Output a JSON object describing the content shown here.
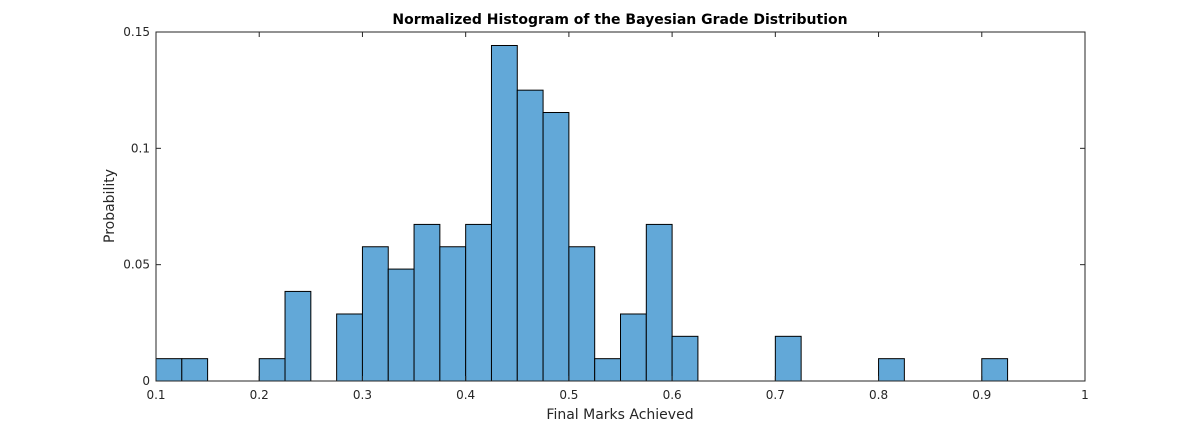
{
  "chart_data": {
    "type": "bar",
    "title": "Normalized Histogram of the Bayesian Grade Distribution",
    "xlabel": "Final Marks Achieved",
    "ylabel": "Probability",
    "xlim": [
      0.1,
      1
    ],
    "ylim": [
      0,
      0.15
    ],
    "xticks": [
      0.1,
      0.2,
      0.3,
      0.4,
      0.5,
      0.6,
      0.7,
      0.8,
      0.9,
      1
    ],
    "xtick_labels": [
      "0.1",
      "0.2",
      "0.3",
      "0.4",
      "0.5",
      "0.6",
      "0.7",
      "0.8",
      "0.9",
      "1"
    ],
    "yticks": [
      0,
      0.05,
      0.1,
      0.15
    ],
    "ytick_labels": [
      "0",
      "0.05",
      "0.1",
      "0.15"
    ],
    "bin_width": 0.025,
    "bin_edges_start": 0.1,
    "values": [
      0.0096,
      0.0096,
      0,
      0,
      0.0096,
      0.0385,
      0,
      0.0288,
      0.0577,
      0.0481,
      0.0673,
      0.0577,
      0.0673,
      0.1442,
      0.125,
      0.1154,
      0.0577,
      0.0096,
      0.0288,
      0.0673,
      0.0192,
      0,
      0,
      0,
      0.0192,
      0,
      0,
      0,
      0.0096,
      0,
      0,
      0,
      0.0096,
      0,
      0,
      0
    ],
    "bar_color": "#62A8D8",
    "edge_color": "#000000",
    "grid": false
  }
}
